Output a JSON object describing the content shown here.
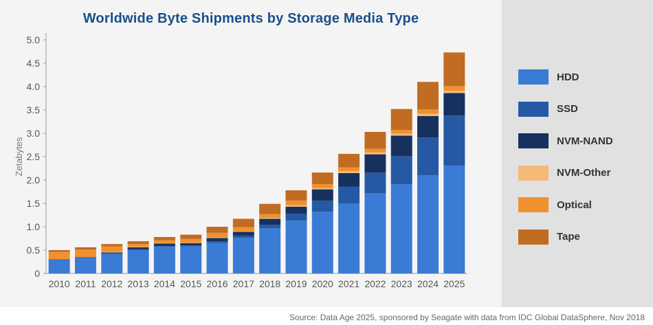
{
  "chart_data": {
    "type": "bar",
    "stacked": true,
    "title": "Worldwide Byte Shipments by Storage Media Type",
    "xlabel": "",
    "ylabel": "Zetabytes",
    "ylim": [
      0,
      5.0
    ],
    "yticks": [
      "0",
      "0.5",
      "1.0",
      "1.5",
      "2.0",
      "2.5",
      "3.0",
      "3.5",
      "4.0",
      "4.5",
      "5.0"
    ],
    "categories": [
      "2010",
      "2011",
      "2012",
      "2013",
      "2014",
      "2015",
      "2016",
      "2017",
      "2018",
      "2019",
      "2020",
      "2021",
      "2022",
      "2023",
      "2024",
      "2025"
    ],
    "series": [
      {
        "name": "HDD",
        "color": "#3a7bd5",
        "values": [
          0.29,
          0.34,
          0.42,
          0.5,
          0.57,
          0.58,
          0.65,
          0.76,
          0.97,
          1.13,
          1.32,
          1.5,
          1.72,
          1.91,
          2.1,
          2.31
        ]
      },
      {
        "name": "SSD",
        "color": "#2559a3",
        "values": [
          0.0,
          0.0,
          0.01,
          0.02,
          0.02,
          0.02,
          0.04,
          0.05,
          0.07,
          0.15,
          0.24,
          0.36,
          0.44,
          0.6,
          0.81,
          1.07
        ]
      },
      {
        "name": "NVM-NAND",
        "color": "#17315e",
        "values": [
          0.01,
          0.01,
          0.02,
          0.04,
          0.05,
          0.05,
          0.07,
          0.08,
          0.13,
          0.15,
          0.24,
          0.29,
          0.39,
          0.44,
          0.46,
          0.48
        ]
      },
      {
        "name": "NVM-Other",
        "color": "#f5b978",
        "values": [
          0.0,
          0.0,
          0.01,
          0.01,
          0.01,
          0.01,
          0.01,
          0.01,
          0.02,
          0.03,
          0.03,
          0.04,
          0.04,
          0.04,
          0.05,
          0.05
        ]
      },
      {
        "name": "Optical",
        "color": "#f0912f",
        "values": [
          0.16,
          0.16,
          0.12,
          0.06,
          0.06,
          0.08,
          0.1,
          0.09,
          0.08,
          0.1,
          0.08,
          0.08,
          0.08,
          0.08,
          0.09,
          0.1
        ]
      },
      {
        "name": "Tape",
        "color": "#c06c22",
        "values": [
          0.04,
          0.05,
          0.05,
          0.06,
          0.07,
          0.09,
          0.13,
          0.18,
          0.22,
          0.22,
          0.25,
          0.29,
          0.36,
          0.45,
          0.59,
          0.72
        ]
      }
    ],
    "legend_position": "right",
    "grid": false
  },
  "source_text": "Source: Data Age 2025, sponsored by Seagate with data from IDC Global DataSphere, Nov 2018"
}
